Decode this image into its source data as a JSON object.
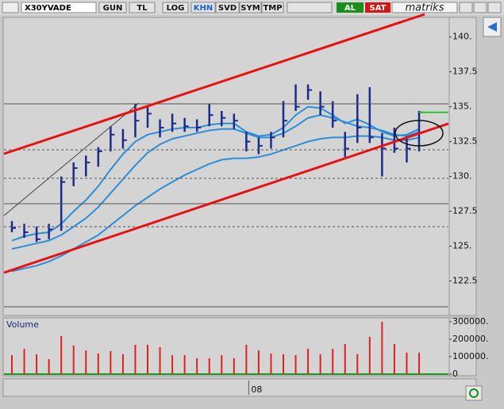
{
  "toolbar": {
    "symbol": "X30YVADE",
    "buttons": [
      "GUN",
      "TL",
      "LOG",
      "KHN",
      "SVD",
      "SYM",
      "TMP"
    ],
    "buy": "AL",
    "sell": "SAT",
    "brand": "matriks"
  },
  "chart_data": [
    {
      "type": "ohlc",
      "bar_color": "#1c2a8a",
      "last_color": "#22cc22",
      "categories": [
        null,
        null,
        null,
        null,
        null,
        null,
        null,
        null,
        null,
        null,
        null,
        null,
        null,
        null,
        null,
        null,
        null,
        null,
        null,
        "08",
        null,
        null,
        null,
        null,
        null,
        null,
        null,
        null,
        null,
        null,
        null,
        null,
        null,
        null
      ],
      "high": [
        126.8,
        126.6,
        126.4,
        126.6,
        130.0,
        131.0,
        131.5,
        132.1,
        133.6,
        133.4,
        135.2,
        135.1,
        134.1,
        134.5,
        134.2,
        134.1,
        135.2,
        134.7,
        134.5,
        133.2,
        132.8,
        133.2,
        135.4,
        136.6,
        136.6,
        136.1,
        135.4,
        133.2,
        135.9,
        136.4,
        133.1,
        133.5,
        132.9,
        134.7
      ],
      "low": [
        126.0,
        125.6,
        125.3,
        125.5,
        126.1,
        129.3,
        130.0,
        130.7,
        131.8,
        132.0,
        132.8,
        133.5,
        132.8,
        133.2,
        133.2,
        133.2,
        133.6,
        133.6,
        133.4,
        131.8,
        131.6,
        132.0,
        132.8,
        134.7,
        135.5,
        134.4,
        133.5,
        131.4,
        132.4,
        132.4,
        130.0,
        131.7,
        131.0,
        131.8
      ],
      "close": [
        126.3,
        126.0,
        125.5,
        126.2,
        129.6,
        130.6,
        131.0,
        131.8,
        133.0,
        132.6,
        134.0,
        134.5,
        133.5,
        133.8,
        133.6,
        133.5,
        134.4,
        134.2,
        134.0,
        132.5,
        132.2,
        132.8,
        134.0,
        135.0,
        136.2,
        135.0,
        134.0,
        132.0,
        133.5,
        132.8,
        132.0,
        132.0,
        132.0,
        134.6
      ],
      "moving_averages": [
        {
          "color": "#2b8fd8",
          "values": [
            125.4,
            125.7,
            125.9,
            126.0,
            126.6,
            127.5,
            128.3,
            129.3,
            130.5,
            131.6,
            132.5,
            133.0,
            133.2,
            133.4,
            133.5,
            133.5,
            133.7,
            133.8,
            133.8,
            133.2,
            132.9,
            133.0,
            133.5,
            134.4,
            135.0,
            134.9,
            134.4,
            133.8,
            134.1,
            133.7,
            133.2,
            132.9,
            133.0,
            133.4
          ]
        },
        {
          "color": "#2b8fd8",
          "values": [
            124.8,
            125.0,
            125.2,
            125.4,
            125.8,
            126.4,
            127.0,
            127.8,
            128.8,
            129.8,
            130.8,
            131.7,
            132.3,
            132.7,
            132.9,
            133.1,
            133.3,
            133.4,
            133.4,
            133.1,
            132.8,
            132.8,
            133.1,
            133.6,
            134.2,
            134.4,
            134.2,
            133.9,
            133.6,
            133.5,
            133.3,
            133.0,
            132.9,
            133.2
          ]
        },
        {
          "color": "#2b8fd8",
          "values": [
            123.2,
            123.4,
            123.6,
            123.9,
            124.3,
            124.8,
            125.3,
            125.8,
            126.5,
            127.2,
            127.9,
            128.5,
            129.1,
            129.6,
            130.1,
            130.5,
            130.9,
            131.2,
            131.3,
            131.3,
            131.4,
            131.6,
            131.9,
            132.2,
            132.5,
            132.7,
            132.8,
            132.8,
            132.9,
            132.9,
            132.8,
            132.6,
            132.6,
            132.8
          ]
        }
      ],
      "ylim": [
        120.2,
        142.2
      ],
      "yticks": [
        {
          "value": 140,
          "label": "140."
        },
        137.5,
        {
          "value": 135,
          "label": "135."
        },
        132.5,
        {
          "value": 130,
          "label": "130."
        },
        127.5,
        {
          "value": 125,
          "label": "125."
        },
        122.5
      ]
    },
    {
      "type": "bar",
      "title": "Volume",
      "color": "#e02020",
      "baseline_color": "#1a9a1a",
      "values": [
        109000,
        145000,
        114000,
        86000,
        218000,
        164000,
        136000,
        118000,
        132000,
        114000,
        168000,
        168000,
        155000,
        109000,
        109000,
        91000,
        91000,
        109000,
        91000,
        168000,
        136000,
        118000,
        114000,
        109000,
        145000,
        114000,
        145000,
        173000,
        114000,
        214000,
        300000,
        173000,
        123000,
        123000
      ],
      "ylim": [
        0,
        327000
      ],
      "yticks": [
        {
          "value": 300000,
          "label": "300000."
        },
        {
          "value": 200000,
          "label": "200000."
        },
        {
          "value": 100000,
          "label": "100000."
        },
        0
      ]
    }
  ]
}
